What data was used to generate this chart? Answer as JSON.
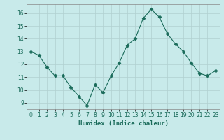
{
  "x": [
    0,
    1,
    2,
    3,
    4,
    5,
    6,
    7,
    8,
    9,
    10,
    11,
    12,
    13,
    14,
    15,
    16,
    17,
    18,
    19,
    20,
    21,
    22,
    23
  ],
  "y": [
    13.0,
    12.7,
    11.8,
    11.1,
    11.1,
    10.2,
    9.5,
    8.8,
    10.4,
    9.8,
    11.1,
    12.1,
    13.5,
    14.0,
    15.6,
    16.3,
    15.7,
    14.4,
    13.6,
    13.0,
    12.1,
    11.3,
    11.1,
    11.5
  ],
  "xlabel": "Humidex (Indice chaleur)",
  "bg_color": "#c8eaea",
  "grid_color": "#b0d0d0",
  "line_color": "#1a6b5a",
  "marker_color": "#1a6b5a",
  "xlim": [
    -0.5,
    23.5
  ],
  "ylim": [
    8.5,
    16.7
  ],
  "yticks": [
    9,
    10,
    11,
    12,
    13,
    14,
    15,
    16
  ],
  "xticks": [
    0,
    1,
    2,
    3,
    4,
    5,
    6,
    7,
    8,
    9,
    10,
    11,
    12,
    13,
    14,
    15,
    16,
    17,
    18,
    19,
    20,
    21,
    22,
    23
  ],
  "xlabel_color": "#1a6b5a",
  "tick_color": "#1a6b5a"
}
